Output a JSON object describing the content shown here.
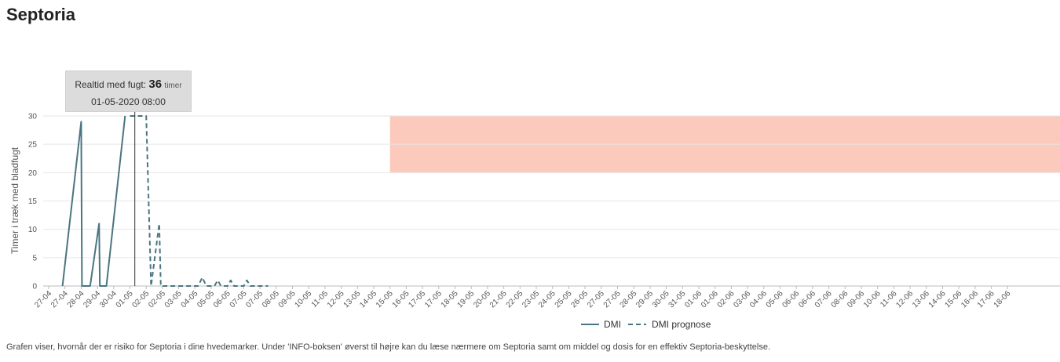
{
  "page": {
    "title": "Septoria",
    "caption": "Grafen viser, hvornår der er risiko for Septoria i dine hvedemarker. Under 'INFO-boksen' øverst til højre kan du læse nærmere om Septoria samt om middel og dosis for en effektiv Septoria-beskyttelse."
  },
  "tooltip": {
    "label": "Realtid med fugt:",
    "value": "36",
    "unit": "timer",
    "date": "01-05-2020 08:00"
  },
  "colors": {
    "series": "#4a7580",
    "risk_band": "#fccabd",
    "grid": "#e6e6e6",
    "cursor": "#333333"
  },
  "chart_data": {
    "type": "line",
    "ylabel": "Timer i træk med bladfugt",
    "ylim": [
      0,
      30
    ],
    "yticks": [
      0,
      5,
      10,
      15,
      20,
      25,
      30
    ],
    "grid": true,
    "legend_position": "bottom-center",
    "xtick_labels": [
      "27-04",
      "27-04",
      "28-04",
      "29-04",
      "30-04",
      "01-05",
      "02-05",
      "02-05",
      "03-05",
      "04-05",
      "05-05",
      "06-05",
      "07-05",
      "07-05",
      "08-05",
      "09-05",
      "10-05",
      "11-05",
      "12-05",
      "13-05",
      "14-05",
      "15-05",
      "16-05",
      "17-05",
      "17-05",
      "18-05",
      "19-05",
      "20-05",
      "21-05",
      "22-05",
      "23-05",
      "24-05",
      "25-05",
      "26-05",
      "27-05",
      "27-05",
      "28-05",
      "29-05",
      "30-05",
      "31-05",
      "01-06",
      "01-06",
      "02-06",
      "03-06",
      "04-06",
      "05-06",
      "06-06",
      "06-06",
      "07-06",
      "08-06",
      "09-06",
      "10-06",
      "11-06",
      "12-06",
      "13-06",
      "14-06",
      "15-06",
      "16-06",
      "17-06",
      "18-06"
    ],
    "risk_band": {
      "x_from_label": "15-05",
      "y_from": 20,
      "y_to": 30
    },
    "cursor_x": 5.3,
    "series": [
      {
        "name": "DMI",
        "style": "solid",
        "points": [
          [
            0.85,
            0
          ],
          [
            2.0,
            29
          ],
          [
            2.05,
            0
          ],
          [
            2.55,
            0
          ],
          [
            3.1,
            11
          ],
          [
            3.15,
            0
          ],
          [
            3.55,
            0
          ],
          [
            4.7,
            30
          ]
        ]
      },
      {
        "name": "DMI prognose",
        "style": "dashed",
        "points": [
          [
            5.0,
            30
          ],
          [
            6.0,
            30
          ],
          [
            6.3,
            0
          ],
          [
            6.8,
            11
          ],
          [
            6.9,
            0
          ],
          [
            9.2,
            0
          ],
          [
            9.45,
            1.5
          ],
          [
            9.7,
            0
          ],
          [
            10.2,
            0
          ],
          [
            10.4,
            1
          ],
          [
            10.6,
            0
          ],
          [
            11.0,
            0
          ],
          [
            11.2,
            1
          ],
          [
            11.4,
            0
          ],
          [
            12.0,
            0
          ],
          [
            12.2,
            1
          ],
          [
            12.4,
            0
          ],
          [
            13.5,
            0
          ]
        ]
      }
    ]
  }
}
